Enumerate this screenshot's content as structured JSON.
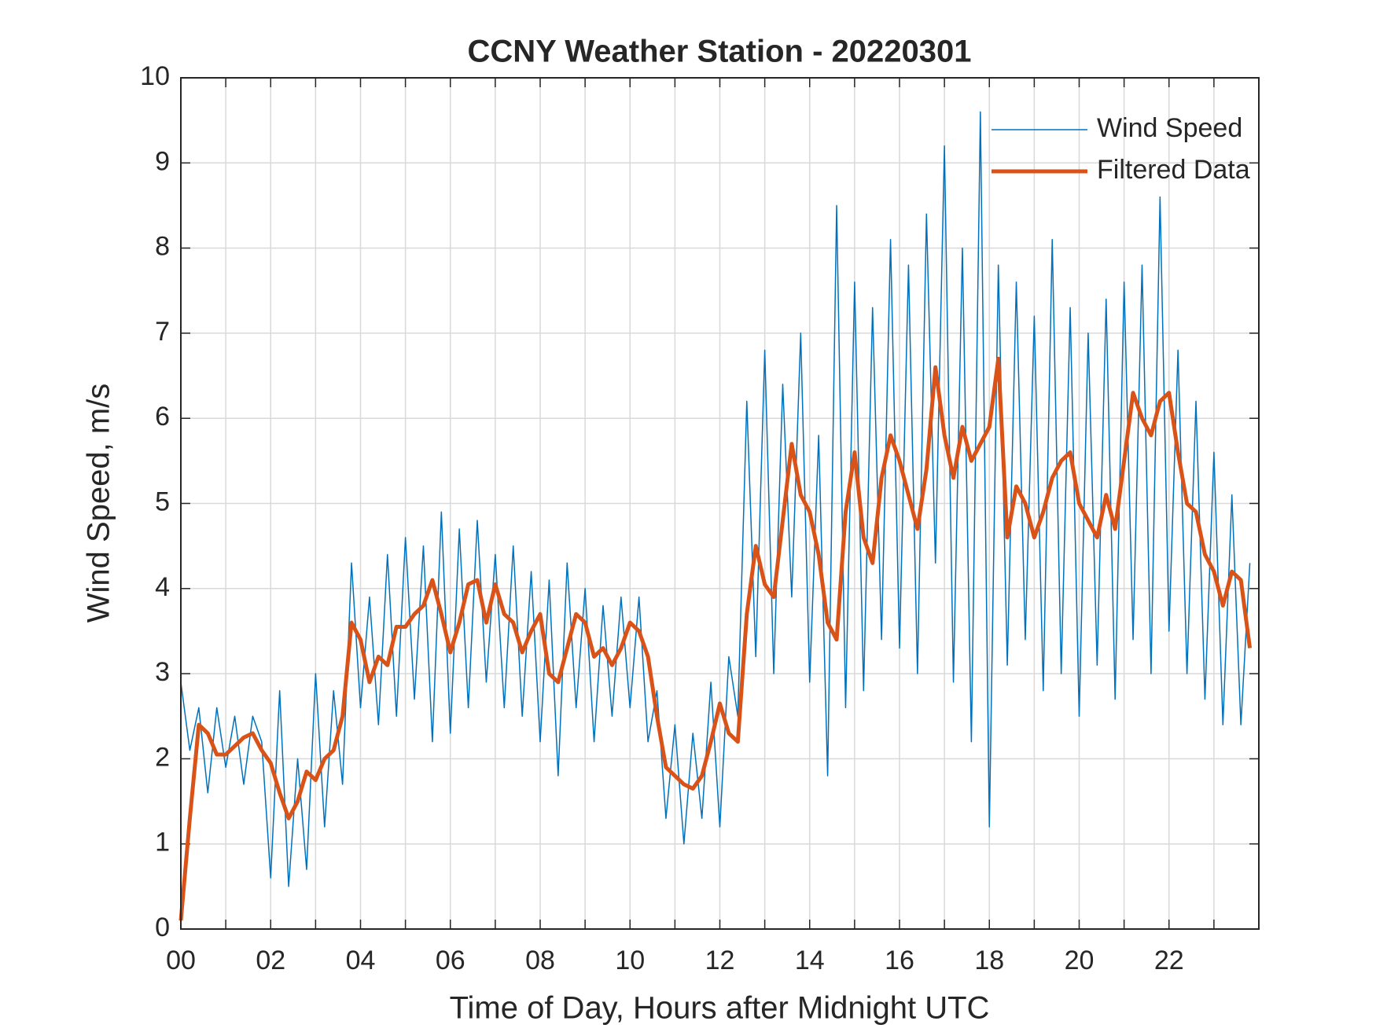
{
  "chart_data": {
    "type": "line",
    "title": "CCNY Weather Station - 20220301",
    "x_label": "Time of Day, Hours after Midnight UTC",
    "y_label": "Wind Speed, m/s",
    "xlim": [
      0,
      24
    ],
    "ylim": [
      0,
      10
    ],
    "xticks": [
      {
        "value": 0,
        "label": "00"
      },
      {
        "value": 2,
        "label": "02"
      },
      {
        "value": 4,
        "label": "04"
      },
      {
        "value": 6,
        "label": "06"
      },
      {
        "value": 8,
        "label": "08"
      },
      {
        "value": 10,
        "label": "10"
      },
      {
        "value": 12,
        "label": "12"
      },
      {
        "value": 14,
        "label": "14"
      },
      {
        "value": 16,
        "label": "16"
      },
      {
        "value": 18,
        "label": "18"
      },
      {
        "value": 20,
        "label": "20"
      },
      {
        "value": 22,
        "label": "22"
      }
    ],
    "xminorticks": [
      1,
      3,
      5,
      7,
      9,
      11,
      13,
      15,
      17,
      19,
      21,
      23
    ],
    "yticks": [
      0,
      1,
      2,
      3,
      4,
      5,
      6,
      7,
      8,
      9,
      10
    ],
    "grid": true,
    "legend_position": "top-right",
    "x": [
      0,
      0.2,
      0.4,
      0.6,
      0.8,
      1,
      1.2,
      1.4,
      1.6,
      1.8,
      2,
      2.2,
      2.4,
      2.6,
      2.8,
      3,
      3.2,
      3.4,
      3.6,
      3.8,
      4,
      4.2,
      4.4,
      4.6,
      4.8,
      5,
      5.2,
      5.4,
      5.6,
      5.8,
      6,
      6.2,
      6.4,
      6.6,
      6.8,
      7,
      7.2,
      7.4,
      7.6,
      7.8,
      8,
      8.2,
      8.4,
      8.6,
      8.8,
      9,
      9.2,
      9.4,
      9.6,
      9.8,
      10,
      10.2,
      10.4,
      10.6,
      10.8,
      11,
      11.2,
      11.4,
      11.6,
      11.8,
      12,
      12.2,
      12.4,
      12.6,
      12.8,
      13,
      13.2,
      13.4,
      13.6,
      13.8,
      14,
      14.2,
      14.4,
      14.6,
      14.8,
      15,
      15.2,
      15.4,
      15.6,
      15.8,
      16,
      16.2,
      16.4,
      16.6,
      16.8,
      17,
      17.2,
      17.4,
      17.6,
      17.8,
      18,
      18.2,
      18.4,
      18.6,
      18.8,
      19,
      19.2,
      19.4,
      19.6,
      19.8,
      20,
      20.2,
      20.4,
      20.6,
      20.8,
      21,
      21.2,
      21.4,
      21.6,
      21.8,
      22,
      22.2,
      22.4,
      22.6,
      22.8,
      23,
      23.2,
      23.4,
      23.6,
      23.8
    ],
    "series": [
      {
        "name": "Wind Speed",
        "color": "#0072bd",
        "width": 1.5,
        "values": [
          2.9,
          2.1,
          2.6,
          1.6,
          2.6,
          1.9,
          2.5,
          1.7,
          2.5,
          2.2,
          0.6,
          2.8,
          0.5,
          2.0,
          0.7,
          3.0,
          1.2,
          2.8,
          1.7,
          4.3,
          2.6,
          3.9,
          2.4,
          4.4,
          2.5,
          4.6,
          2.7,
          4.5,
          2.2,
          4.9,
          2.3,
          4.7,
          2.6,
          4.8,
          2.9,
          4.4,
          2.6,
          4.5,
          2.5,
          4.2,
          2.2,
          4.1,
          1.8,
          4.3,
          2.6,
          4.0,
          2.2,
          3.8,
          2.5,
          3.9,
          2.6,
          3.9,
          2.2,
          2.8,
          1.3,
          2.4,
          1.0,
          2.3,
          1.3,
          2.9,
          1.2,
          3.2,
          2.5,
          6.2,
          3.2,
          6.8,
          3.0,
          6.4,
          3.9,
          7.0,
          2.9,
          5.8,
          1.8,
          8.5,
          2.6,
          7.6,
          2.8,
          7.3,
          3.4,
          8.1,
          3.3,
          7.8,
          3.0,
          8.4,
          4.3,
          9.2,
          2.9,
          8.0,
          2.2,
          9.6,
          1.2,
          7.8,
          3.1,
          7.6,
          3.4,
          7.2,
          2.8,
          8.1,
          3.0,
          7.3,
          2.5,
          7.0,
          3.1,
          7.4,
          2.7,
          7.6,
          3.4,
          7.8,
          3.0,
          8.6,
          3.5,
          6.8,
          3.0,
          6.2,
          2.7,
          5.6,
          2.4,
          5.1,
          2.4,
          4.3
        ]
      },
      {
        "name": "Filtered Data",
        "color": "#d95319",
        "width": 5,
        "values": [
          0.1,
          1.3,
          2.4,
          2.3,
          2.05,
          2.05,
          2.15,
          2.25,
          2.3,
          2.1,
          1.95,
          1.6,
          1.3,
          1.5,
          1.85,
          1.75,
          2.0,
          2.1,
          2.5,
          3.6,
          3.4,
          2.9,
          3.2,
          3.1,
          3.55,
          3.55,
          3.7,
          3.8,
          4.1,
          3.7,
          3.25,
          3.6,
          4.05,
          4.1,
          3.6,
          4.05,
          3.7,
          3.6,
          3.25,
          3.5,
          3.7,
          3.0,
          2.9,
          3.3,
          3.7,
          3.6,
          3.2,
          3.3,
          3.1,
          3.3,
          3.6,
          3.5,
          3.2,
          2.5,
          1.9,
          1.8,
          1.7,
          1.65,
          1.8,
          2.2,
          2.65,
          2.3,
          2.2,
          3.7,
          4.5,
          4.05,
          3.9,
          4.8,
          5.7,
          5.1,
          4.9,
          4.4,
          3.6,
          3.4,
          4.9,
          5.6,
          4.6,
          4.3,
          5.3,
          5.8,
          5.5,
          5.1,
          4.7,
          5.4,
          6.6,
          5.8,
          5.3,
          5.9,
          5.5,
          5.7,
          5.9,
          6.7,
          4.6,
          5.2,
          5.0,
          4.6,
          4.9,
          5.3,
          5.5,
          5.6,
          5.0,
          4.8,
          4.6,
          5.1,
          4.7,
          5.5,
          6.3,
          6.0,
          5.8,
          6.2,
          6.3,
          5.6,
          5.0,
          4.9,
          4.4,
          4.2,
          3.8,
          4.2,
          4.1,
          3.3
        ]
      }
    ]
  }
}
